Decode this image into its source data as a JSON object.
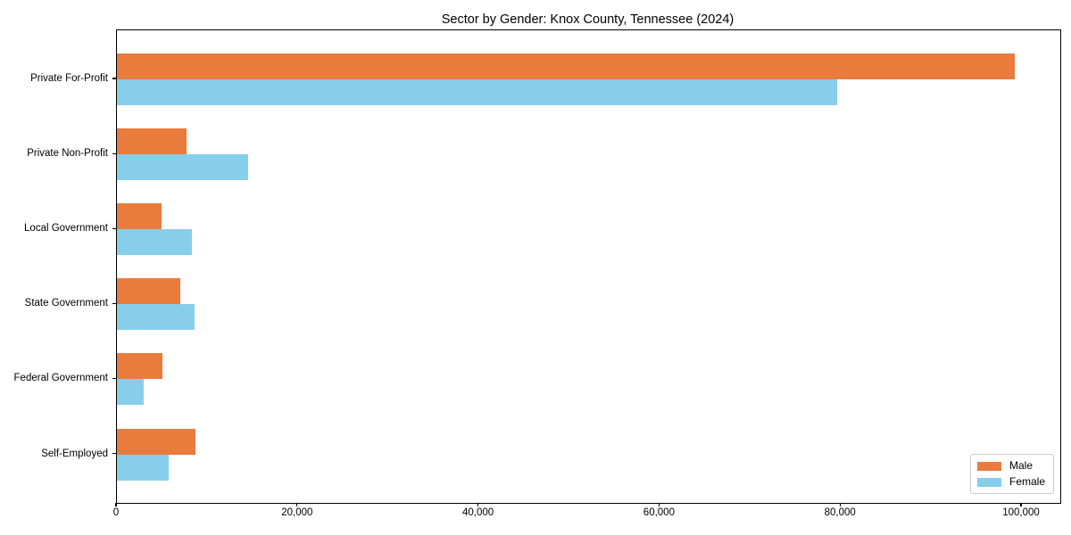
{
  "title": "Sector by Gender: Knox County, Tennessee (2024)",
  "colors": {
    "male": "#E97B3C",
    "female": "#87CEEB",
    "axis": "#000000",
    "legend_border": "#cccccc",
    "background": "#ffffff"
  },
  "legend": {
    "entries": [
      {
        "label": "Male",
        "color": "#E97B3C"
      },
      {
        "label": "Female",
        "color": "#87CEEB"
      }
    ],
    "position": "lower right"
  },
  "chart_data": {
    "type": "bar",
    "orientation": "horizontal",
    "title": "Sector by Gender: Knox County, Tennessee (2024)",
    "categories": [
      "Private For-Profit",
      "Private Non-Profit",
      "Local Government",
      "State Government",
      "Federal Government",
      "Self-Employed"
    ],
    "series": [
      {
        "name": "Male",
        "color": "#E97B3C",
        "values": [
          99200,
          7700,
          4900,
          7000,
          5000,
          8700
        ]
      },
      {
        "name": "Female",
        "color": "#87CEEB",
        "values": [
          79600,
          14500,
          8300,
          8600,
          3000,
          5700
        ]
      }
    ],
    "xlabel": "",
    "ylabel": "",
    "xlim": [
      0,
      104240
    ],
    "xticks": [
      0,
      20000,
      40000,
      60000,
      80000,
      100000
    ],
    "xtick_labels": [
      "0",
      "20,000",
      "40,000",
      "60,000",
      "80,000",
      "100,000"
    ],
    "grid": false,
    "legend_position": "lower right"
  }
}
